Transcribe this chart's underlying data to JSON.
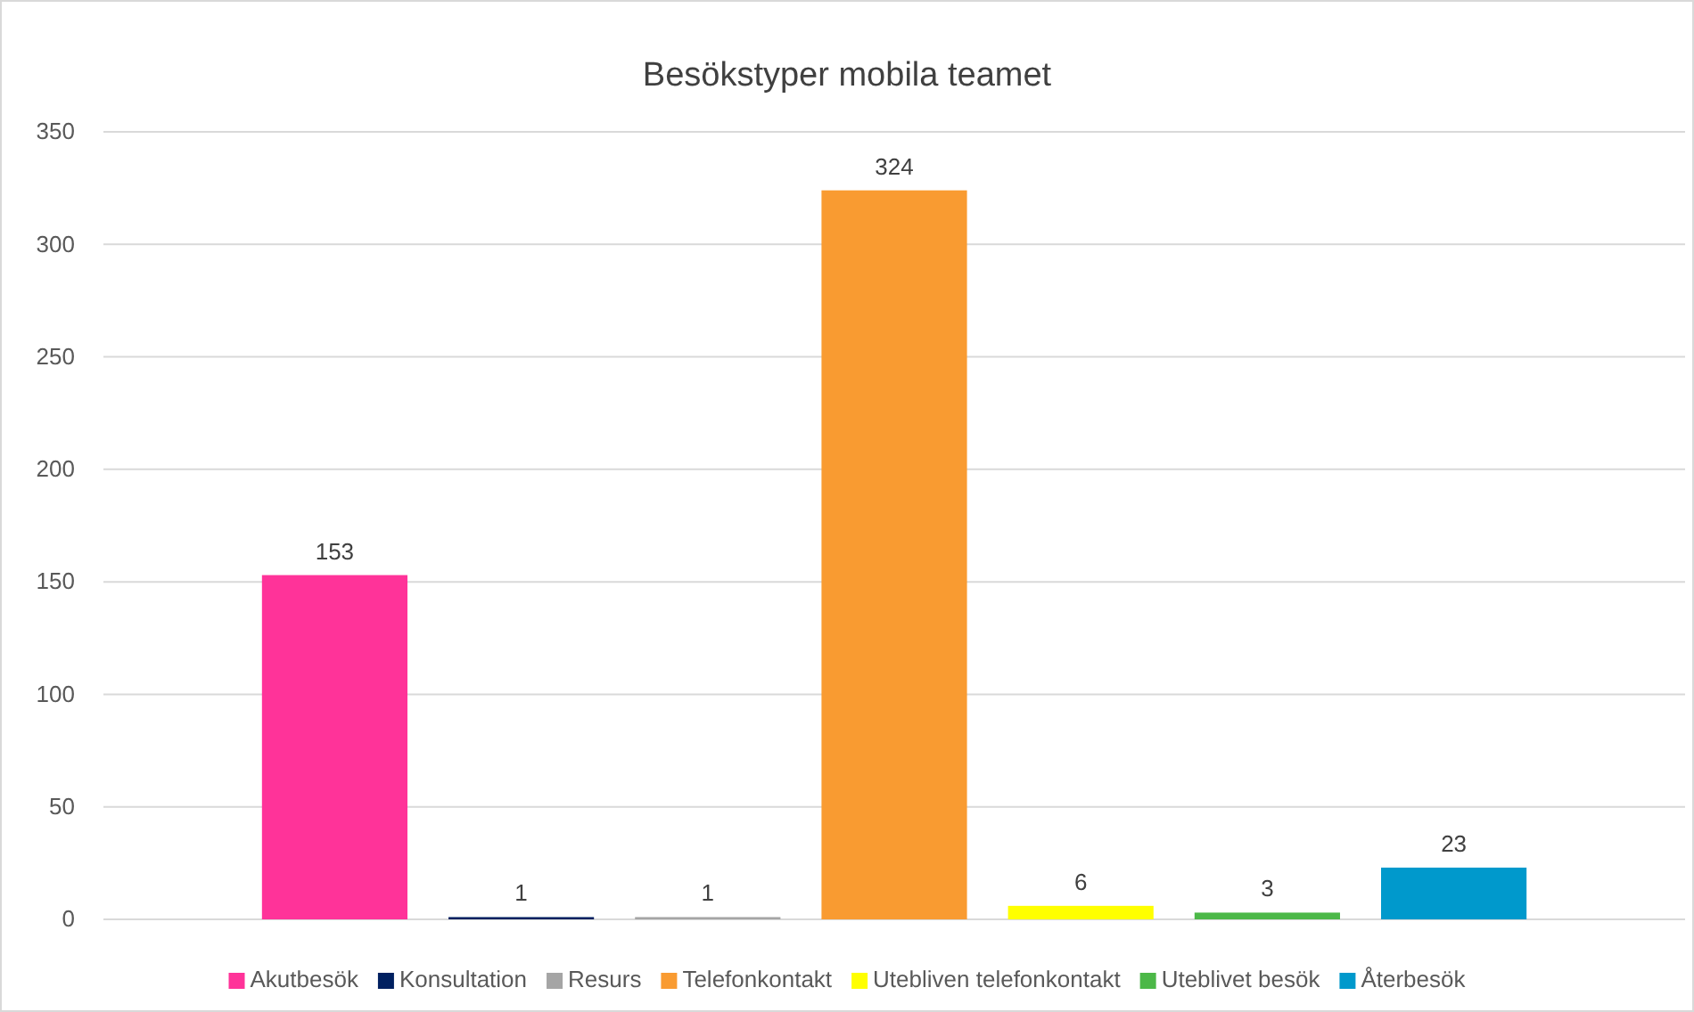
{
  "chart_data": {
    "type": "bar",
    "title": "Besökstyper mobila teamet",
    "categories": [
      null
    ],
    "series": [
      {
        "name": "Akutbesök",
        "color": "#ff3399",
        "values": [
          153
        ]
      },
      {
        "name": "Konsultation",
        "color": "#002060",
        "values": [
          1
        ]
      },
      {
        "name": "Resurs",
        "color": "#a5a5a5",
        "values": [
          1
        ]
      },
      {
        "name": "Telefonkontakt",
        "color": "#f99b31",
        "values": [
          324
        ]
      },
      {
        "name": "Utebliven telefonkontakt",
        "color": "#ffff00",
        "values": [
          6
        ]
      },
      {
        "name": "Uteblivet besök",
        "color": "#4cb848",
        "values": [
          3
        ]
      },
      {
        "name": "Återbesök",
        "color": "#0099cc",
        "values": [
          23
        ]
      }
    ],
    "ylim": [
      0,
      350
    ],
    "yticks": [
      0,
      50,
      100,
      150,
      200,
      250,
      300,
      350
    ],
    "grid": "y",
    "legend": "bottom",
    "data_labels": true
  }
}
